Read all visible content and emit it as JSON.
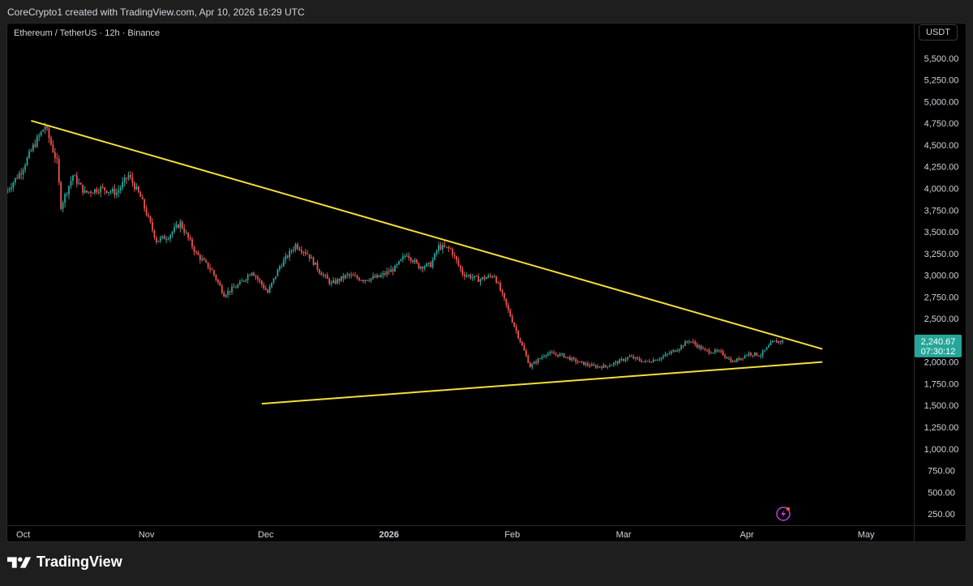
{
  "header": {
    "credit": "CoreCrypto1 created with TradingView.com, Apr 10, 2026 16:29 UTC"
  },
  "chart_header": {
    "symbol_title": "Ethereum / TetherUS · 12h · Binance",
    "currency": "USDT"
  },
  "footer": {
    "brand": "TradingView"
  },
  "colors": {
    "up": "#26a69a",
    "down": "#ef5350",
    "trendline": "#f2df3a",
    "price_label": "#26a69a",
    "axis_text": "#d1d4dc"
  },
  "chart_data": {
    "type": "candlestick",
    "title": "Ethereum / TetherUS · 12h · Binance",
    "ylim": [
      120,
      5900
    ],
    "y_ticks": [
      250,
      500,
      750,
      1000,
      1250,
      1500,
      1750,
      2000,
      2250,
      2500,
      2750,
      3000,
      3250,
      3500,
      3750,
      4000,
      4250,
      4500,
      4750,
      5000,
      5250,
      5500
    ],
    "x_range": [
      "2025-09-27",
      "2026-05-13"
    ],
    "x_ticks": [
      {
        "date": "2025-10-01",
        "label": "Oct",
        "bold": false
      },
      {
        "date": "2025-11-01",
        "label": "Nov",
        "bold": false
      },
      {
        "date": "2025-12-01",
        "label": "Dec",
        "bold": false
      },
      {
        "date": "2026-01-01",
        "label": "2026",
        "bold": true
      },
      {
        "date": "2026-02-01",
        "label": "Feb",
        "bold": false
      },
      {
        "date": "2026-03-01",
        "label": "Mar",
        "bold": false
      },
      {
        "date": "2026-04-01",
        "label": "Apr",
        "bold": false
      },
      {
        "date": "2026-05-01",
        "label": "May",
        "bold": false
      }
    ],
    "candle_start": "2025-09-27",
    "candle_end": "2026-04-10",
    "price_path": [
      [
        "2025-09-27",
        3950
      ],
      [
        "2025-10-01",
        4200
      ],
      [
        "2025-10-04",
        4480
      ],
      [
        "2025-10-07",
        4720
      ],
      [
        "2025-10-10",
        4300
      ],
      [
        "2025-10-11",
        3800
      ],
      [
        "2025-10-14",
        4150
      ],
      [
        "2025-10-17",
        3950
      ],
      [
        "2025-10-21",
        4000
      ],
      [
        "2025-10-25",
        3950
      ],
      [
        "2025-10-28",
        4150
      ],
      [
        "2025-10-31",
        3900
      ],
      [
        "2025-11-04",
        3400
      ],
      [
        "2025-11-07",
        3450
      ],
      [
        "2025-11-10",
        3600
      ],
      [
        "2025-11-14",
        3250
      ],
      [
        "2025-11-18",
        3050
      ],
      [
        "2025-11-21",
        2780
      ],
      [
        "2025-11-25",
        2900
      ],
      [
        "2025-11-28",
        3050
      ],
      [
        "2025-12-02",
        2800
      ],
      [
        "2025-12-05",
        3100
      ],
      [
        "2025-12-09",
        3350
      ],
      [
        "2025-12-12",
        3250
      ],
      [
        "2025-12-15",
        3050
      ],
      [
        "2025-12-18",
        2900
      ],
      [
        "2025-12-22",
        3000
      ],
      [
        "2025-12-26",
        2950
      ],
      [
        "2025-12-30",
        2980
      ],
      [
        "2026-01-03",
        3080
      ],
      [
        "2026-01-06",
        3250
      ],
      [
        "2026-01-09",
        3100
      ],
      [
        "2026-01-12",
        3120
      ],
      [
        "2026-01-14",
        3330
      ],
      [
        "2026-01-17",
        3300
      ],
      [
        "2026-01-20",
        3020
      ],
      [
        "2026-01-24",
        2950
      ],
      [
        "2026-01-28",
        3000
      ],
      [
        "2026-01-31",
        2650
      ],
      [
        "2026-02-03",
        2300
      ],
      [
        "2026-02-06",
        1950
      ],
      [
        "2026-02-10",
        2100
      ],
      [
        "2026-02-14",
        2080
      ],
      [
        "2026-02-18",
        2000
      ],
      [
        "2026-02-22",
        1950
      ],
      [
        "2026-02-25",
        1950
      ],
      [
        "2026-02-28",
        2000
      ],
      [
        "2026-03-03",
        2060
      ],
      [
        "2026-03-07",
        2000
      ],
      [
        "2026-03-11",
        2050
      ],
      [
        "2026-03-15",
        2150
      ],
      [
        "2026-03-18",
        2250
      ],
      [
        "2026-03-22",
        2130
      ],
      [
        "2026-03-26",
        2110
      ],
      [
        "2026-03-29",
        2000
      ],
      [
        "2026-04-02",
        2100
      ],
      [
        "2026-04-05",
        2080
      ],
      [
        "2026-04-08",
        2230
      ],
      [
        "2026-04-10",
        2240
      ]
    ],
    "trendlines": [
      {
        "name": "",
        "x0": "2025-10-03",
        "y0": 4780,
        "x1": "2026-04-20",
        "y1": 2150
      },
      {
        "name": "",
        "x0": "2025-11-30",
        "y0": 1520,
        "x1": "2026-04-20",
        "y1": 2000
      }
    ],
    "last_price": {
      "value": 2240.67,
      "label": "2,240.67",
      "countdown": "07:30:12"
    }
  }
}
